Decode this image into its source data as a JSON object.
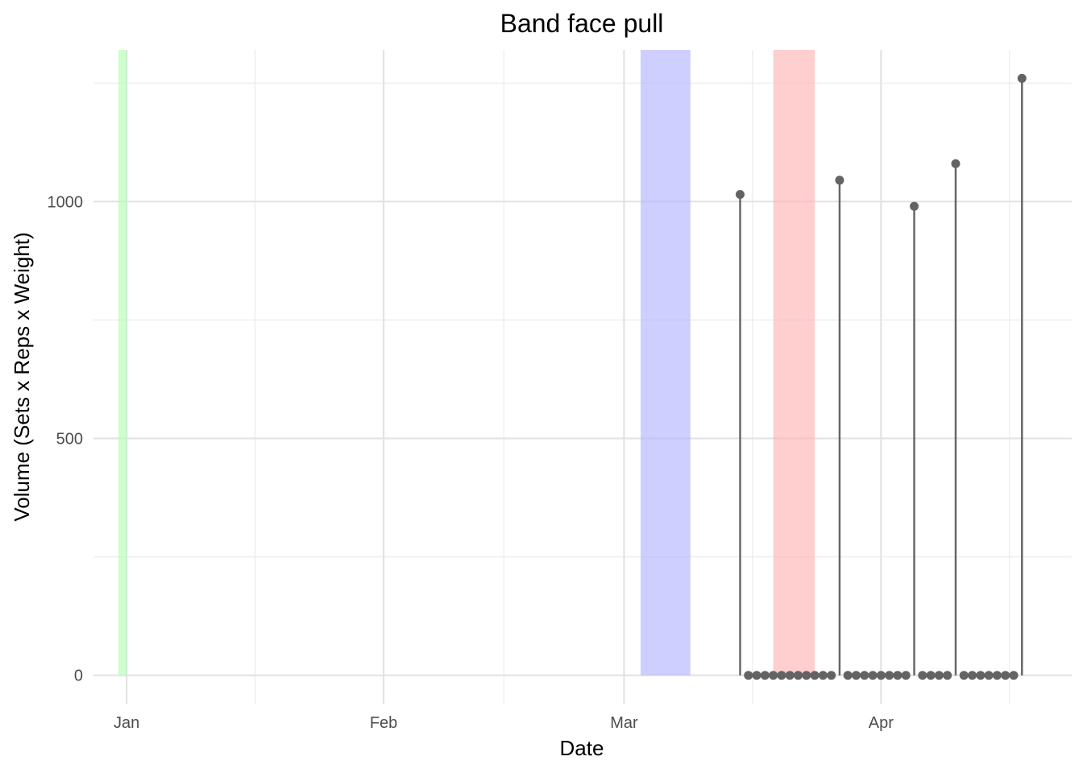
{
  "chart_data": {
    "type": "lollipop",
    "title": "Band face pull",
    "xlabel": "Date",
    "ylabel": "Volume (Sets x Reps x Weight)",
    "grid": true,
    "legend": "none",
    "xlim": [
      "2023-12-28",
      "2024-04-24"
    ],
    "ylim": [
      -60,
      1320
    ],
    "x_ticks": [
      {
        "date": "2024-01-01",
        "label": "Jan"
      },
      {
        "date": "2024-02-01",
        "label": "Feb"
      },
      {
        "date": "2024-03-01",
        "label": "Mar"
      },
      {
        "date": "2024-04-01",
        "label": "Apr"
      }
    ],
    "y_ticks": [
      0,
      500,
      1000
    ],
    "color": "#636363",
    "shaded_periods": [
      {
        "start": "2023-12-31",
        "end": "2024-01-01",
        "color": "#b3ffb3"
      },
      {
        "start": "2024-03-03",
        "end": "2024-03-09",
        "color": "#b3b3ff"
      },
      {
        "start": "2024-03-19",
        "end": "2024-03-24",
        "color": "#ffb3b3"
      }
    ],
    "points": [
      {
        "date": "2024-03-15",
        "value": 1015
      },
      {
        "date": "2024-03-16",
        "value": 0
      },
      {
        "date": "2024-03-17",
        "value": 0
      },
      {
        "date": "2024-03-18",
        "value": 0
      },
      {
        "date": "2024-03-19",
        "value": 0
      },
      {
        "date": "2024-03-20",
        "value": 0
      },
      {
        "date": "2024-03-21",
        "value": 0
      },
      {
        "date": "2024-03-22",
        "value": 0
      },
      {
        "date": "2024-03-23",
        "value": 0
      },
      {
        "date": "2024-03-24",
        "value": 0
      },
      {
        "date": "2024-03-25",
        "value": 0
      },
      {
        "date": "2024-03-26",
        "value": 0
      },
      {
        "date": "2024-03-27",
        "value": 1045
      },
      {
        "date": "2024-03-28",
        "value": 0
      },
      {
        "date": "2024-03-29",
        "value": 0
      },
      {
        "date": "2024-03-30",
        "value": 0
      },
      {
        "date": "2024-03-31",
        "value": 0
      },
      {
        "date": "2024-04-01",
        "value": 0
      },
      {
        "date": "2024-04-02",
        "value": 0
      },
      {
        "date": "2024-04-03",
        "value": 0
      },
      {
        "date": "2024-04-04",
        "value": 0
      },
      {
        "date": "2024-04-05",
        "value": 990
      },
      {
        "date": "2024-04-06",
        "value": 0
      },
      {
        "date": "2024-04-07",
        "value": 0
      },
      {
        "date": "2024-04-08",
        "value": 0
      },
      {
        "date": "2024-04-09",
        "value": 0
      },
      {
        "date": "2024-04-10",
        "value": 1080
      },
      {
        "date": "2024-04-11",
        "value": 0
      },
      {
        "date": "2024-04-12",
        "value": 0
      },
      {
        "date": "2024-04-13",
        "value": 0
      },
      {
        "date": "2024-04-14",
        "value": 0
      },
      {
        "date": "2024-04-15",
        "value": 0
      },
      {
        "date": "2024-04-16",
        "value": 0
      },
      {
        "date": "2024-04-17",
        "value": 0
      },
      {
        "date": "2024-04-18",
        "value": 1260
      }
    ]
  }
}
